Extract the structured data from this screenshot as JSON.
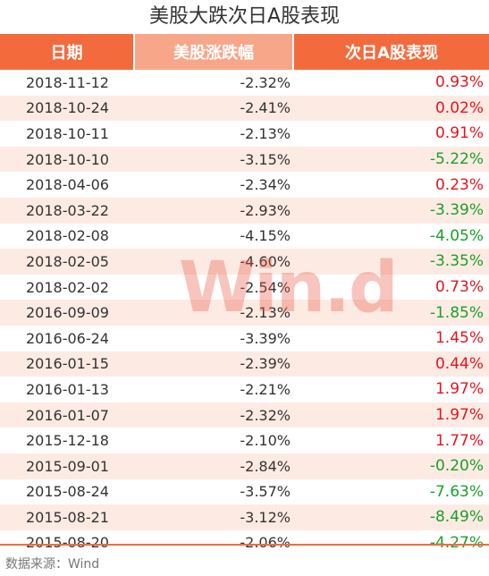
{
  "title": "美股大跌次日A股表现",
  "headers": [
    "日期",
    "美股涨跌幅",
    "次日A股表现"
  ],
  "rows": [
    {
      "date": "2018-11-12",
      "us": "-2.32%",
      "a": "0.93%"
    },
    {
      "date": "2018-10-24",
      "us": "-2.41%",
      "a": "0.02%"
    },
    {
      "date": "2018-10-11",
      "us": "-2.13%",
      "a": "0.91%"
    },
    {
      "date": "2018-10-10",
      "us": "-3.15%",
      "a": "-5.22%"
    },
    {
      "date": "2018-04-06",
      "us": "-2.34%",
      "a": "0.23%"
    },
    {
      "date": "2018-03-22",
      "us": "-2.93%",
      "a": "-3.39%"
    },
    {
      "date": "2018-02-08",
      "us": "-4.15%",
      "a": "-4.05%"
    },
    {
      "date": "2018-02-05",
      "us": "-4.60%",
      "a": "-3.35%"
    },
    {
      "date": "2018-02-02",
      "us": "-2.54%",
      "a": "0.73%"
    },
    {
      "date": "2016-09-09",
      "us": "-2.13%",
      "a": "-1.85%"
    },
    {
      "date": "2016-06-24",
      "us": "-3.39%",
      "a": "1.45%"
    },
    {
      "date": "2016-01-15",
      "us": "-2.39%",
      "a": "0.44%"
    },
    {
      "date": "2016-01-13",
      "us": "-2.21%",
      "a": "1.97%"
    },
    {
      "date": "2016-01-07",
      "us": "-2.32%",
      "a": "1.97%"
    },
    {
      "date": "2015-12-18",
      "us": "-2.10%",
      "a": "1.77%"
    },
    {
      "date": "2015-09-01",
      "us": "-2.84%",
      "a": "-0.20%"
    },
    {
      "date": "2015-08-24",
      "us": "-3.57%",
      "a": "-7.63%"
    },
    {
      "date": "2015-08-21",
      "us": "-3.12%",
      "a": "-8.49%"
    },
    {
      "date": "2015-08-20",
      "us": "-2.06%",
      "a": "-4.27%"
    }
  ],
  "source": "数据来源：Wind",
  "watermark": "Win.d",
  "colors": {
    "header": "#f36a3d",
    "header_mid": "#f7a68a",
    "row_alt": "#fdebe3",
    "positive": "#e8141b",
    "negative": "#1aa028"
  }
}
